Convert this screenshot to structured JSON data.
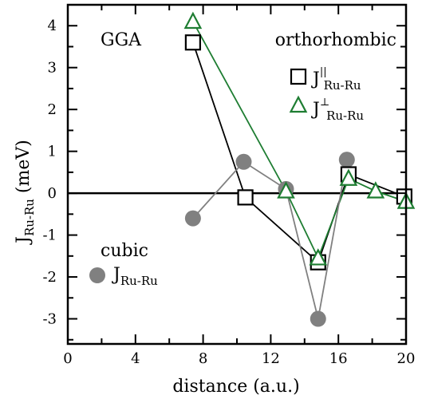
{
  "chart_data": {
    "type": "scatter",
    "xlabel": "distance (a.u.)",
    "ylabel_main": "J",
    "ylabel_sub": "Ru-Ru",
    "ylabel_unit": " (meV)",
    "xlim": [
      0,
      20
    ],
    "ylim": [
      -3.6,
      4.5
    ],
    "xticks": [
      0,
      4,
      8,
      12,
      16,
      20
    ],
    "xtick_labels": [
      "0",
      "4",
      "8",
      "12",
      "16",
      "20"
    ],
    "yticks": [
      -3,
      -2,
      -1,
      0,
      1,
      2,
      3,
      4
    ],
    "ytick_labels": [
      "-3",
      "-2",
      "-1",
      "0",
      "1",
      "2",
      "3",
      "4"
    ],
    "annotations": {
      "method": "GGA",
      "structure_ortho": "orthorhombic",
      "structure_cubic": "cubic"
    },
    "series": [
      {
        "name_main": "J",
        "name_sup": "||",
        "name_sub": "Ru-Ru",
        "marker": "square",
        "color": "#000000",
        "x": [
          7.4,
          10.5,
          14.8,
          16.6,
          19.9
        ],
        "y": [
          3.6,
          -0.1,
          -1.65,
          0.45,
          -0.08
        ]
      },
      {
        "name_main": "J",
        "name_sup": "⊥",
        "name_sub": "Ru-Ru",
        "marker": "triangle",
        "color": "#1e7d32",
        "x": [
          7.4,
          12.9,
          14.8,
          16.6,
          18.2,
          20.0
        ],
        "y": [
          4.1,
          0.05,
          -1.55,
          0.35,
          0.05,
          -0.2
        ]
      },
      {
        "name_main": "J",
        "name_sup": "",
        "name_sub": "Ru-Ru",
        "marker": "circle",
        "color": "#808080",
        "x": [
          7.4,
          10.4,
          12.9,
          14.8,
          16.5
        ],
        "y": [
          -0.6,
          0.75,
          0.1,
          -3.0,
          0.8
        ]
      }
    ]
  }
}
